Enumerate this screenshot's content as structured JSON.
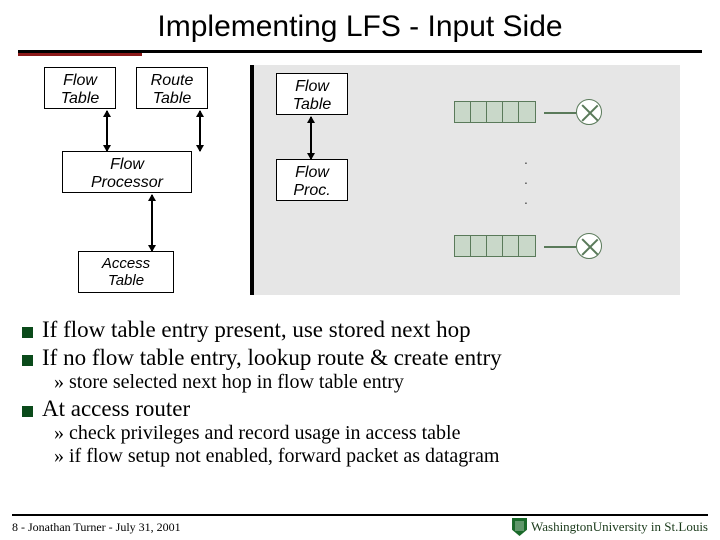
{
  "title": "Implementing LFS - Input Side",
  "diagram": {
    "left": {
      "flow_table": "Flow\nTable",
      "route_table": "Route\nTable",
      "flow_processor": "Flow\nProcessor",
      "access_table": "Access\nTable"
    },
    "right": {
      "flow_table": "Flow\nTable",
      "flow_proc": "Flow\nProc.",
      "buffer_cells": 5,
      "buffer_fill": "#c9d8c9",
      "buffer_border": "#5a7a5a",
      "panel_bg": "#e6e6e6"
    }
  },
  "bullets": {
    "b1": "If flow table entry present, use stored next hop",
    "b2": "If no flow table entry, lookup route & create entry",
    "b2_sub": "» store selected next hop in flow table entry",
    "b3": "At access router",
    "b3_sub1": "» check privileges and record usage in access table",
    "b3_sub2": "» if flow setup not enabled, forward packet as datagram"
  },
  "footer": {
    "left": "8 - Jonathan Turner - July 31, 2001",
    "right": "WashingtonUniversity in St.Louis"
  },
  "colors": {
    "bullet_square": "#0a4a1a",
    "rule": "#000000",
    "accent": "#8b1a1a"
  }
}
